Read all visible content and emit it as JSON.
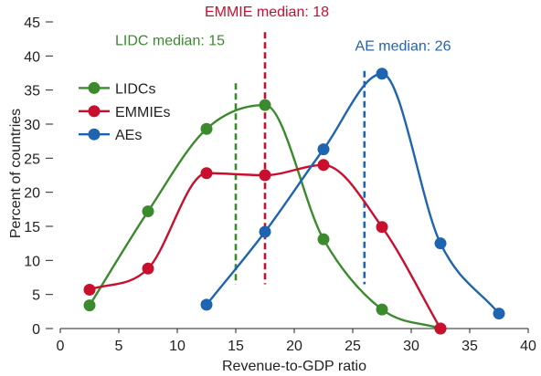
{
  "chart_data": {
    "type": "line",
    "xlabel": "Revenue-to-GDP ratio",
    "ylabel": "Percent of countries",
    "xlim": [
      0,
      40
    ],
    "ylim": [
      0,
      45
    ],
    "xticks": [
      "0",
      "5",
      "10",
      "15",
      "20",
      "25",
      "30",
      "35",
      "40"
    ],
    "yticks": [
      "0",
      "5",
      "10",
      "15",
      "20",
      "25",
      "30",
      "35",
      "40",
      "45"
    ],
    "grid": false,
    "legend": "top-left",
    "series": [
      {
        "name": "LIDCs",
        "color": "#3b8a2e",
        "x": [
          2.5,
          7.5,
          12.5,
          17.5,
          22.5,
          27.5,
          32.5
        ],
        "y": [
          3.4,
          17.2,
          29.3,
          32.8,
          13.1,
          2.8,
          0
        ]
      },
      {
        "name": "EMMIEs",
        "color": "#c8102e",
        "x": [
          2.5,
          7.5,
          12.5,
          17.5,
          22.5,
          27.5,
          32.5
        ],
        "y": [
          5.7,
          8.8,
          22.8,
          22.5,
          24.0,
          14.9,
          0
        ]
      },
      {
        "name": "AEs",
        "color": "#1f64b0",
        "x": [
          12.5,
          17.5,
          22.5,
          27.5,
          32.5,
          37.5
        ],
        "y": [
          3.5,
          14.2,
          26.3,
          37.4,
          12.5,
          2.2
        ]
      }
    ],
    "medians": [
      {
        "label": "LIDC median: 15",
        "x": 15,
        "color": "#3b8a2e"
      },
      {
        "label": "EMMIE median: 18",
        "x": 17.5,
        "color": "#c8102e"
      },
      {
        "label": "AE median: 26",
        "x": 26,
        "color": "#1f64b0"
      }
    ]
  }
}
